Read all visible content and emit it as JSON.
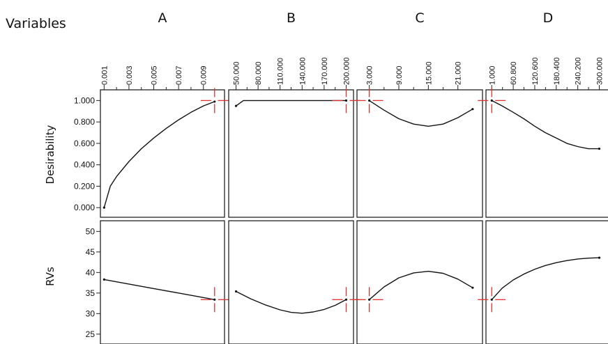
{
  "figure": {
    "title": "Variables",
    "row_labels": [
      "Desirability",
      "RVs"
    ]
  },
  "chart_data": {
    "type": "line",
    "title": "Variables",
    "variables": [
      {
        "name": "A",
        "ticks": [
          "0.001",
          "0.003",
          "0.005",
          "0.007",
          "0.009"
        ],
        "tick_values": [
          0.001,
          0.003,
          0.005,
          0.007,
          0.009
        ],
        "xlim": [
          0.0007,
          0.0107
        ],
        "setting": 0.0099,
        "desirability": {
          "x": [
            0.001,
            0.0015,
            0.002,
            0.003,
            0.004,
            0.005,
            0.006,
            0.007,
            0.008,
            0.009,
            0.0099
          ],
          "y": [
            0.0,
            0.2,
            0.29,
            0.43,
            0.55,
            0.65,
            0.74,
            0.82,
            0.89,
            0.95,
            0.99
          ]
        },
        "rvs": {
          "x": [
            0.001,
            0.003,
            0.005,
            0.007,
            0.009,
            0.0099
          ],
          "y": [
            38.3,
            37.2,
            36.1,
            35.0,
            33.9,
            33.4
          ]
        }
      },
      {
        "name": "B",
        "ticks": [
          "50.000",
          "80.000",
          "110.000",
          "140.000",
          "170.000",
          "200.000"
        ],
        "tick_values": [
          50,
          80,
          110,
          140,
          170,
          200
        ],
        "xlim": [
          40,
          210
        ],
        "setting": 200,
        "desirability": {
          "x": [
            50,
            60,
            80,
            110,
            140,
            170,
            200
          ],
          "y": [
            0.95,
            1.0,
            1.0,
            1.0,
            1.0,
            1.0,
            1.0
          ]
        },
        "rvs": {
          "x": [
            50,
            70,
            90,
            110,
            125,
            140,
            155,
            170,
            185,
            200
          ],
          "y": [
            35.4,
            33.6,
            32.1,
            30.9,
            30.3,
            30.1,
            30.4,
            31.0,
            32.0,
            33.4
          ]
        }
      },
      {
        "name": "C",
        "ticks": [
          "3.000",
          "9.000",
          "15.000",
          "21.000"
        ],
        "tick_values": [
          3,
          9,
          15,
          21
        ],
        "xlim": [
          0.5,
          26
        ],
        "setting": 3,
        "desirability": {
          "x": [
            3,
            6,
            9,
            12,
            15,
            18,
            21,
            24
          ],
          "y": [
            1.0,
            0.91,
            0.83,
            0.78,
            0.76,
            0.78,
            0.84,
            0.92
          ]
        },
        "rvs": {
          "x": [
            3,
            6,
            9,
            12,
            15,
            18,
            21,
            24
          ],
          "y": [
            33.4,
            36.5,
            38.7,
            39.9,
            40.3,
            39.8,
            38.4,
            36.3
          ]
        }
      },
      {
        "name": "D",
        "ticks": [
          "1.000",
          "60.800",
          "120.600",
          "180.400",
          "240.200",
          "300.000"
        ],
        "tick_values": [
          1,
          60.8,
          120.6,
          180.4,
          240.2,
          300
        ],
        "xlim": [
          -15,
          330
        ],
        "setting": 1,
        "desirability": {
          "x": [
            1,
            30,
            60.8,
            90,
            120.6,
            150,
            180.4,
            210,
            240.2,
            270,
            300
          ],
          "y": [
            1.0,
            0.95,
            0.89,
            0.83,
            0.76,
            0.7,
            0.65,
            0.6,
            0.57,
            0.55,
            0.55
          ]
        },
        "rvs": {
          "x": [
            1,
            30,
            60.8,
            90,
            120.6,
            150,
            180.4,
            210,
            240.2,
            270,
            300
          ],
          "y": [
            33.4,
            36.2,
            38.2,
            39.6,
            40.8,
            41.7,
            42.4,
            42.9,
            43.3,
            43.5,
            43.6
          ]
        }
      }
    ],
    "desirability_axis": {
      "label": "Desirability",
      "ticks": [
        "0.000",
        "0.200",
        "0.400",
        "0.600",
        "0.800",
        "1.000"
      ],
      "tick_values": [
        0,
        0.2,
        0.4,
        0.6,
        0.8,
        1.0
      ],
      "ylim": [
        -0.09,
        1.1
      ]
    },
    "rvs_axis": {
      "label": "RVs",
      "ticks": [
        "25",
        "30",
        "35",
        "40",
        "45",
        "50"
      ],
      "tick_values": [
        25,
        30,
        35,
        40,
        45,
        50
      ],
      "ylim": [
        22.6,
        52.6
      ]
    },
    "current_response": {
      "desirability": 1.0,
      "rvs": 33.4
    },
    "grid": false,
    "legend": "none",
    "colors": {
      "curve": "#111111",
      "crosshair": "#e0312f",
      "frame": "#222222"
    }
  }
}
